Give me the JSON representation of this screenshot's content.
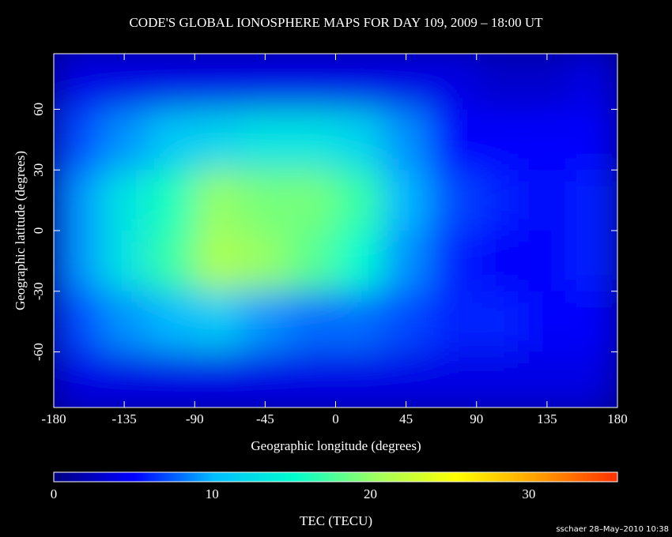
{
  "chart_data": {
    "type": "heatmap",
    "title": "CODE'S GLOBAL IONOSPHERE MAPS FOR DAY 109, 2009 – 18:00 UT",
    "xlabel": "Geographic longitude (degrees)",
    "ylabel": "Geographic latitude (degrees)",
    "xlim": [
      -180,
      180
    ],
    "ylim": [
      -87.5,
      87.5
    ],
    "xticks": [
      -180,
      -135,
      -90,
      -45,
      0,
      45,
      90,
      135,
      180
    ],
    "yticks": [
      -60,
      -30,
      0,
      30,
      60
    ],
    "x": [
      -165,
      -135,
      -105,
      -75,
      -45,
      -15,
      15,
      45,
      75,
      105,
      135,
      165
    ],
    "y": [
      75,
      45,
      15,
      -15,
      -45,
      -75
    ],
    "z": [
      [
        4,
        4,
        4,
        4,
        4,
        4,
        4,
        4,
        4,
        3,
        3,
        4
      ],
      [
        7,
        9,
        11,
        12,
        13,
        13,
        12,
        9,
        5,
        5,
        5,
        5
      ],
      [
        9,
        13,
        16,
        20,
        19,
        19,
        17,
        10,
        7,
        6,
        5,
        6
      ],
      [
        9,
        13,
        17,
        21,
        20,
        18,
        15,
        9,
        6,
        5,
        5,
        6
      ],
      [
        7,
        9,
        10,
        11,
        9,
        8,
        8,
        7,
        6,
        6,
        5,
        5
      ],
      [
        4,
        4,
        4,
        4,
        4,
        4,
        4,
        4,
        4,
        4,
        4,
        4
      ]
    ],
    "colorbar": {
      "label": "TEC (TECU)",
      "lim": [
        0,
        35.6
      ],
      "ticks": [
        0,
        10,
        20,
        30
      ],
      "colors": [
        "#00007f",
        "#0000ff",
        "#00bfff",
        "#00ffcc",
        "#9fff5f",
        "#ffff00",
        "#ff9f00",
        "#ff3000"
      ]
    },
    "footer": "sschaer 28–May–2010 10:38"
  }
}
